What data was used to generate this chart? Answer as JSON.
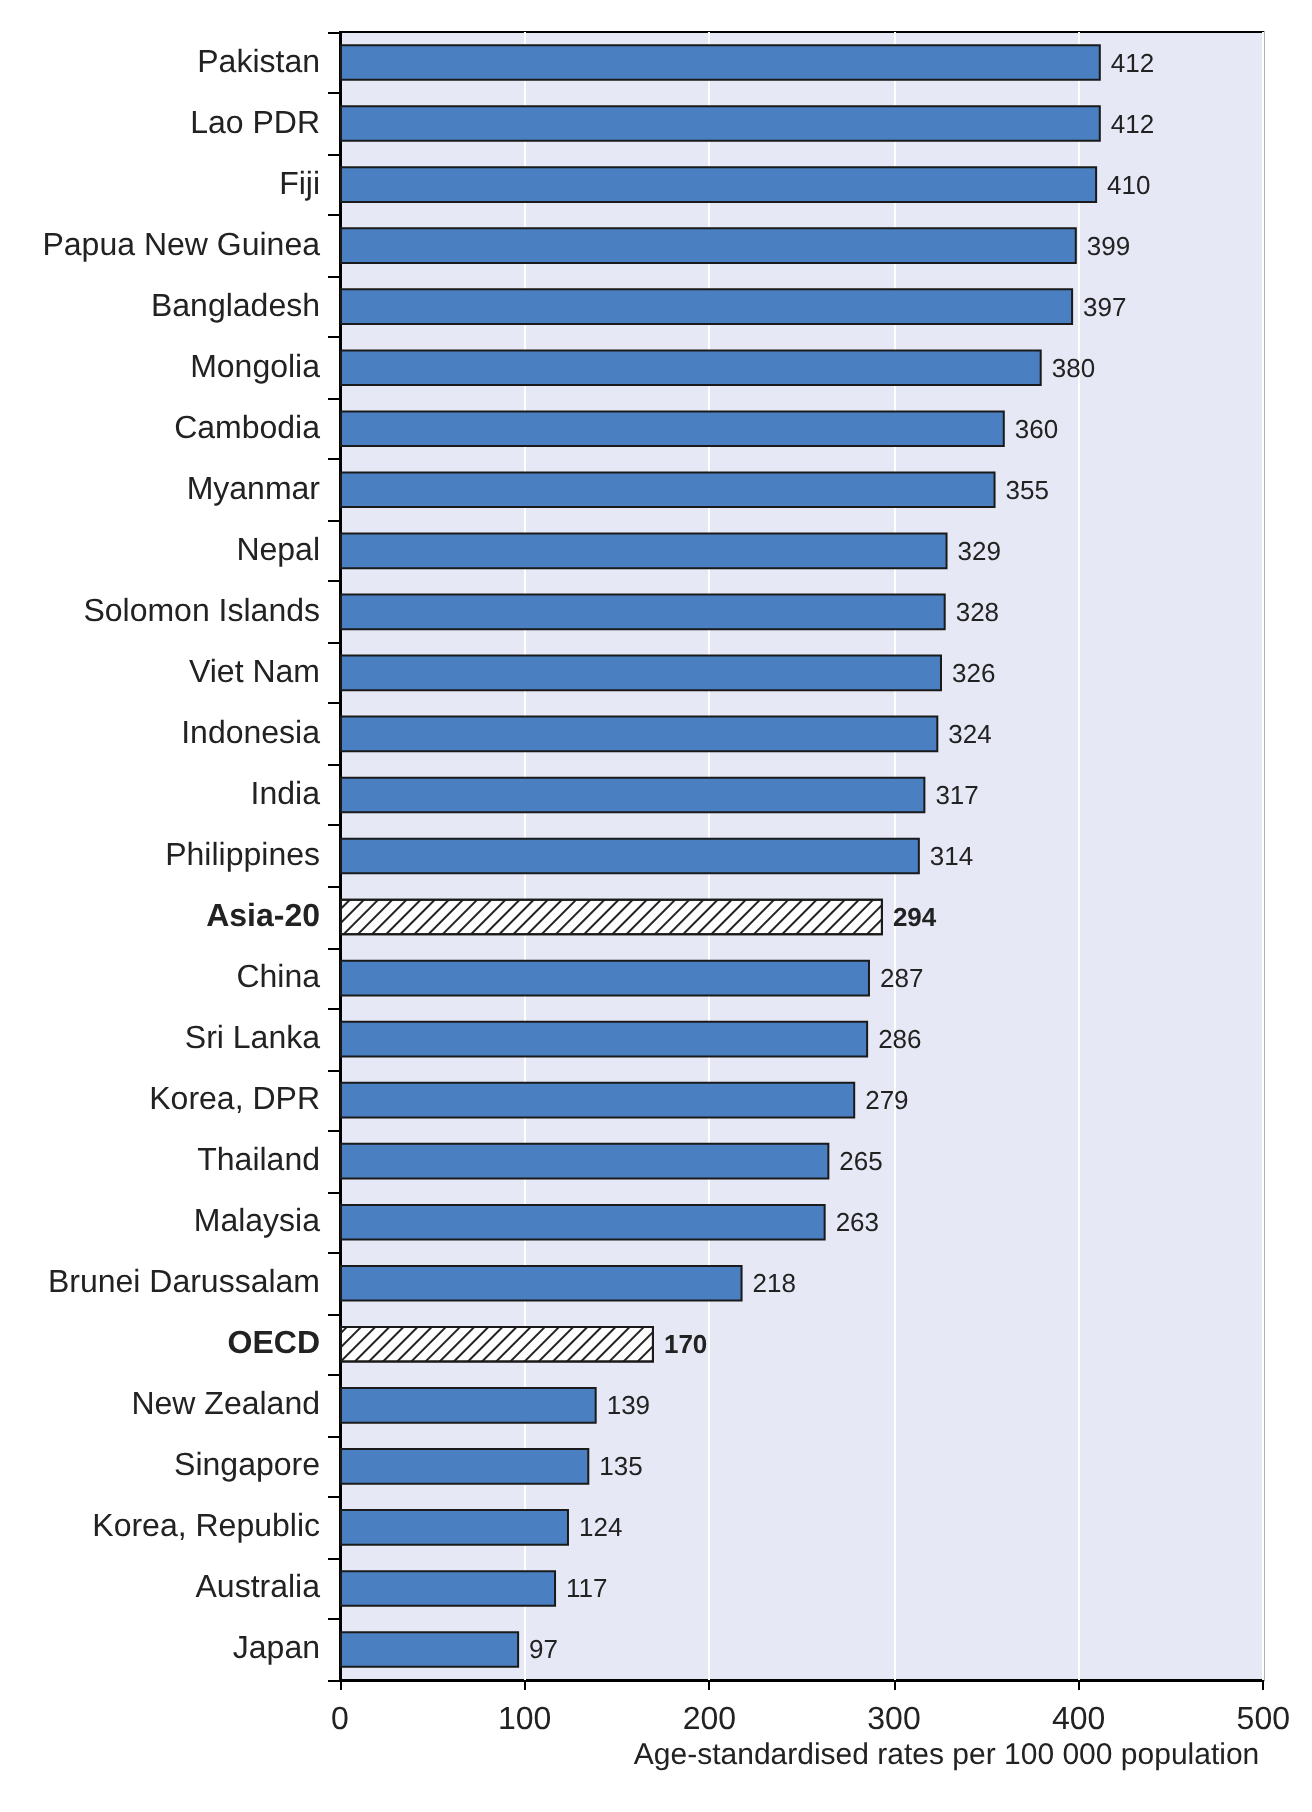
{
  "chart_data": {
    "type": "bar",
    "orientation": "horizontal",
    "xlabel": "Age-standardised rates per 100 000 population",
    "categories": [
      "Pakistan",
      "Lao PDR",
      "Fiji",
      "Papua New Guinea",
      "Bangladesh",
      "Mongolia",
      "Cambodia",
      "Myanmar",
      "Nepal",
      "Solomon Islands",
      "Viet Nam",
      "Indonesia",
      "India",
      "Philippines",
      "Asia-20",
      "China",
      "Sri Lanka",
      "Korea, DPR",
      "Thailand",
      "Malaysia",
      "Brunei Darussalam",
      "OECD",
      "New Zealand",
      "Singapore",
      "Korea, Republic",
      "Australia",
      "Japan"
    ],
    "values": [
      412,
      412,
      410,
      399,
      397,
      380,
      360,
      355,
      329,
      328,
      326,
      324,
      317,
      314,
      294,
      287,
      286,
      279,
      265,
      263,
      218,
      170,
      139,
      135,
      124,
      117,
      97
    ],
    "colors": [
      "#4a7fc1",
      "#4a7fc1",
      "#4a7fc1",
      "#4a7fc1",
      "#4a7fc1",
      "#4a7fc1",
      "#4a7fc1",
      "#4a7fc1",
      "#4a7fc1",
      "#4a7fc1",
      "#4a7fc1",
      "#4a7fc1",
      "#4a7fc1",
      "#4a7fc1",
      "#ffffff",
      "#4a7fc1",
      "#4a7fc1",
      "#4a7fc1",
      "#4a7fc1",
      "#4a7fc1",
      "#4a7fc1",
      "#ffffff",
      "#4a7fc1",
      "#4a7fc1",
      "#4a7fc1",
      "#4a7fc1",
      "#4a7fc1"
    ],
    "xlim": [
      0,
      500
    ],
    "xticks": [
      0,
      100,
      200,
      300,
      400,
      500
    ],
    "grid": "x",
    "data_labels": true
  }
}
